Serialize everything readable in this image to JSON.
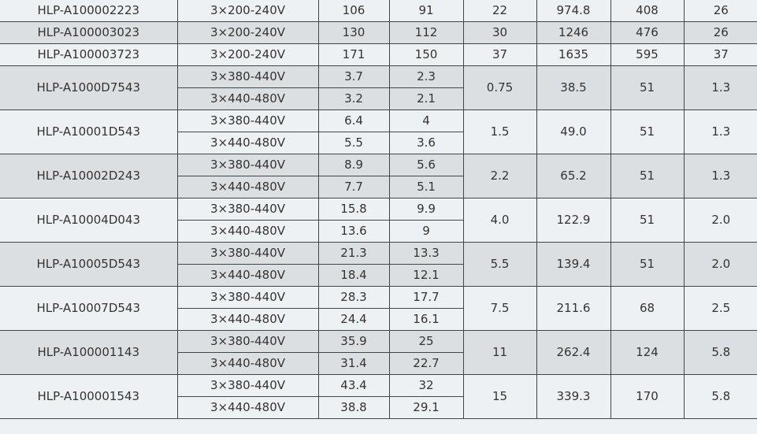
{
  "table": {
    "single_rows": [
      {
        "model": "HLP-A100002223",
        "voltage": "3×200-240V",
        "c1": "106",
        "c2": "91",
        "c3": "22",
        "c4": "974.8",
        "c5": "408",
        "c6": "26"
      },
      {
        "model": "HLP-A100003023",
        "voltage": "3×200-240V",
        "c1": "130",
        "c2": "112",
        "c3": "30",
        "c4": "1246",
        "c5": "476",
        "c6": "26"
      },
      {
        "model": "HLP-A100003723",
        "voltage": "3×200-240V",
        "c1": "171",
        "c2": "150",
        "c3": "37",
        "c4": "1635",
        "c5": "595",
        "c6": "37"
      }
    ],
    "double_rows": [
      {
        "model": "HLP-A1000D7543",
        "v1": "3×380-440V",
        "a1": "3.7",
        "b1": "2.3",
        "v2": "3×440-480V",
        "a2": "3.2",
        "b2": "2.1",
        "c3": "0.75",
        "c4": "38.5",
        "c5": "51",
        "c6": "1.3"
      },
      {
        "model": "HLP-A10001D543",
        "v1": "3×380-440V",
        "a1": "6.4",
        "b1": "4",
        "v2": "3×440-480V",
        "a2": "5.5",
        "b2": "3.6",
        "c3": "1.5",
        "c4": "49.0",
        "c5": "51",
        "c6": "1.3"
      },
      {
        "model": "HLP-A10002D243",
        "v1": "3×380-440V",
        "a1": "8.9",
        "b1": "5.6",
        "v2": "3×440-480V",
        "a2": "7.7",
        "b2": "5.1",
        "c3": "2.2",
        "c4": "65.2",
        "c5": "51",
        "c6": "1.3"
      },
      {
        "model": "HLP-A10004D043",
        "v1": "3×380-440V",
        "a1": "15.8",
        "b1": "9.9",
        "v2": "3×440-480V",
        "a2": "13.6",
        "b2": "9",
        "c3": "4.0",
        "c4": "122.9",
        "c5": "51",
        "c6": "2.0"
      },
      {
        "model": "HLP-A10005D543",
        "v1": "3×380-440V",
        "a1": "21.3",
        "b1": "13.3",
        "v2": "3×440-480V",
        "a2": "18.4",
        "b2": "12.1",
        "c3": "5.5",
        "c4": "139.4",
        "c5": "51",
        "c6": "2.0"
      },
      {
        "model": "HLP-A10007D543",
        "v1": "3×380-440V",
        "a1": "28.3",
        "b1": "17.7",
        "v2": "3×440-480V",
        "a2": "24.4",
        "b2": "16.1",
        "c3": "7.5",
        "c4": "211.6",
        "c5": "68",
        "c6": "2.5"
      },
      {
        "model": "HLP-A100001143",
        "v1": "3×380-440V",
        "a1": "35.9",
        "b1": "25",
        "v2": "3×440-480V",
        "a2": "31.4",
        "b2": "22.7",
        "c3": "11",
        "c4": "262.4",
        "c5": "124",
        "c6": "5.8"
      },
      {
        "model": "HLP-A100001543",
        "v1": "3×380-440V",
        "a1": "43.4",
        "b1": "32",
        "v2": "3×440-480V",
        "a2": "38.8",
        "b2": "29.1",
        "c3": "15",
        "c4": "339.3",
        "c5": "170",
        "c6": "5.8"
      }
    ],
    "colors": {
      "light": "#eef1f4",
      "gray": "#dcdfe2",
      "border": "#444444"
    }
  }
}
